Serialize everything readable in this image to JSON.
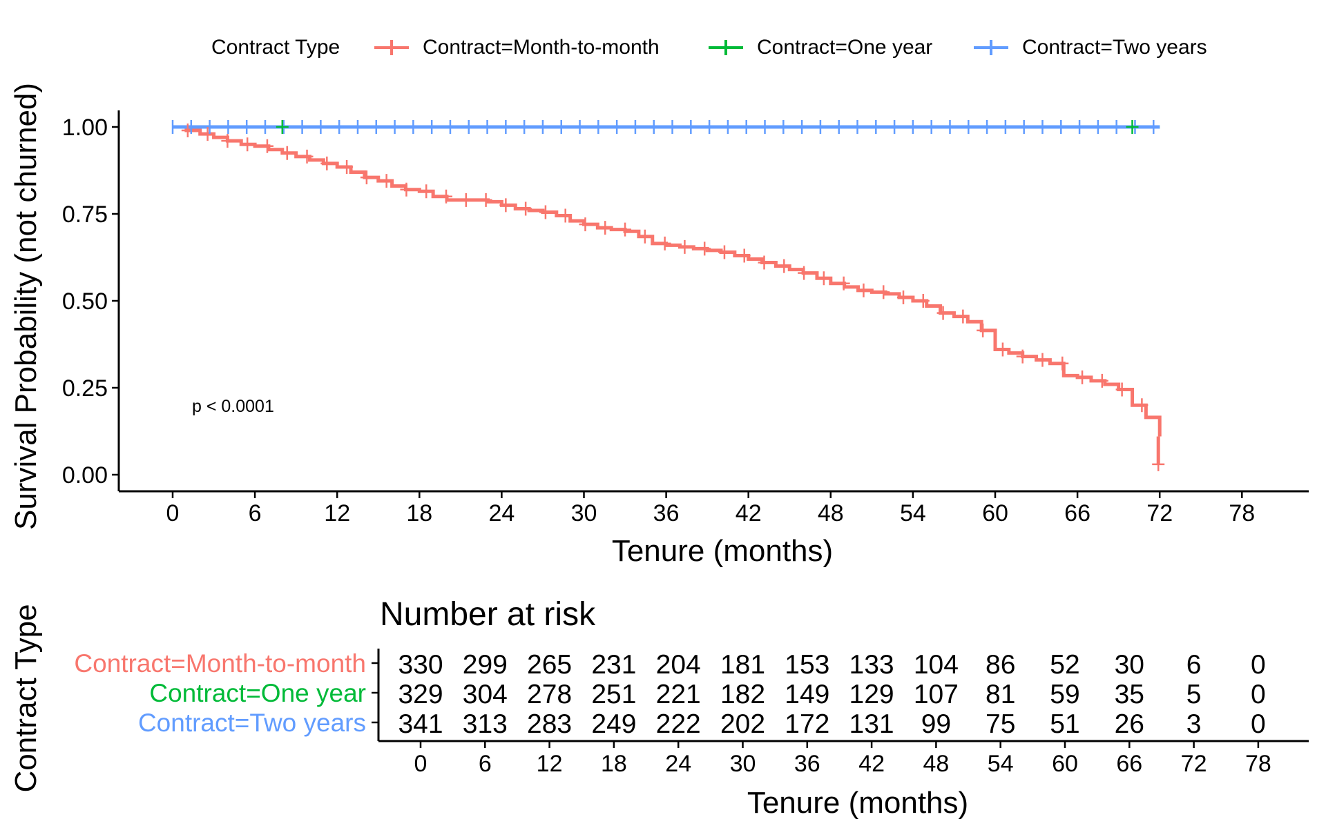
{
  "chart_data": [
    {
      "type": "line",
      "subtype": "kaplan-meier",
      "title": "",
      "xlabel": "Tenure (months)",
      "ylabel": "Survival Probability (not churned)",
      "xlim": [
        -4,
        84
      ],
      "ylim": [
        0,
        1
      ],
      "xticks": [
        0,
        6,
        12,
        18,
        24,
        30,
        36,
        42,
        48,
        54,
        60,
        66,
        72,
        78
      ],
      "yticks": [
        0,
        0.25,
        0.5,
        0.75,
        1.0
      ],
      "ytick_labels": [
        "0.00",
        "0.25",
        "0.50",
        "0.75",
        "1.00"
      ],
      "legend": {
        "title": "Contract Type",
        "position": "top",
        "entries": [
          "Contract=Month-to-month",
          "Contract=One year",
          "Contract=Two years"
        ]
      },
      "annotation": "p < 0.0001",
      "series": [
        {
          "name": "Contract=Month-to-month",
          "color": "#F8766D",
          "x": [
            0,
            1,
            2,
            3,
            4,
            5,
            6,
            7,
            8,
            9,
            10,
            11,
            12,
            13,
            14,
            15,
            16,
            17,
            18,
            19,
            20,
            21,
            22,
            23,
            24,
            25,
            26,
            27,
            28,
            29,
            30,
            31,
            32,
            33,
            34,
            35,
            36,
            37,
            38,
            39,
            40,
            41,
            42,
            43,
            44,
            45,
            46,
            47,
            48,
            49,
            50,
            51,
            52,
            53,
            54,
            55,
            56,
            57,
            58,
            59,
            60,
            61,
            62,
            63,
            64,
            65,
            66,
            67,
            68,
            69,
            70,
            71,
            72
          ],
          "values": [
            1.0,
            0.99,
            0.98,
            0.97,
            0.96,
            0.95,
            0.945,
            0.935,
            0.925,
            0.915,
            0.905,
            0.895,
            0.885,
            0.87,
            0.855,
            0.845,
            0.83,
            0.82,
            0.815,
            0.8,
            0.79,
            0.79,
            0.79,
            0.785,
            0.775,
            0.765,
            0.76,
            0.755,
            0.745,
            0.73,
            0.72,
            0.71,
            0.705,
            0.7,
            0.685,
            0.665,
            0.66,
            0.655,
            0.65,
            0.645,
            0.64,
            0.63,
            0.62,
            0.61,
            0.6,
            0.59,
            0.58,
            0.565,
            0.55,
            0.54,
            0.53,
            0.525,
            0.52,
            0.51,
            0.5,
            0.485,
            0.465,
            0.455,
            0.44,
            0.415,
            0.36,
            0.35,
            0.34,
            0.33,
            0.32,
            0.285,
            0.28,
            0.27,
            0.26,
            0.245,
            0.2,
            0.165,
            0.11
          ]
        },
        {
          "name": "Contract=One year",
          "color": "#00BA38",
          "x": [
            0,
            72
          ],
          "values": [
            1.0,
            1.0
          ]
        },
        {
          "name": "Contract=Two years",
          "color": "#619CFF",
          "x": [
            0,
            72
          ],
          "values": [
            1.0,
            1.0
          ]
        }
      ]
    },
    {
      "type": "table",
      "title": "Number at risk",
      "xlabel": "Tenure (months)",
      "ylabel": "Contract Type",
      "xticks": [
        0,
        6,
        12,
        18,
        24,
        30,
        36,
        42,
        48,
        54,
        60,
        66,
        72,
        78
      ],
      "rows": [
        {
          "name": "Contract=Month-to-month",
          "color": "#F8766D",
          "values": [
            330,
            299,
            265,
            231,
            204,
            181,
            153,
            133,
            104,
            86,
            52,
            30,
            6,
            0
          ]
        },
        {
          "name": "Contract=One year",
          "color": "#00BA38",
          "values": [
            329,
            304,
            278,
            251,
            221,
            182,
            149,
            129,
            107,
            81,
            59,
            35,
            5,
            0
          ]
        },
        {
          "name": "Contract=Two years",
          "color": "#619CFF",
          "values": [
            341,
            313,
            283,
            249,
            222,
            202,
            172,
            131,
            99,
            75,
            51,
            26,
            3,
            0
          ]
        }
      ]
    }
  ]
}
